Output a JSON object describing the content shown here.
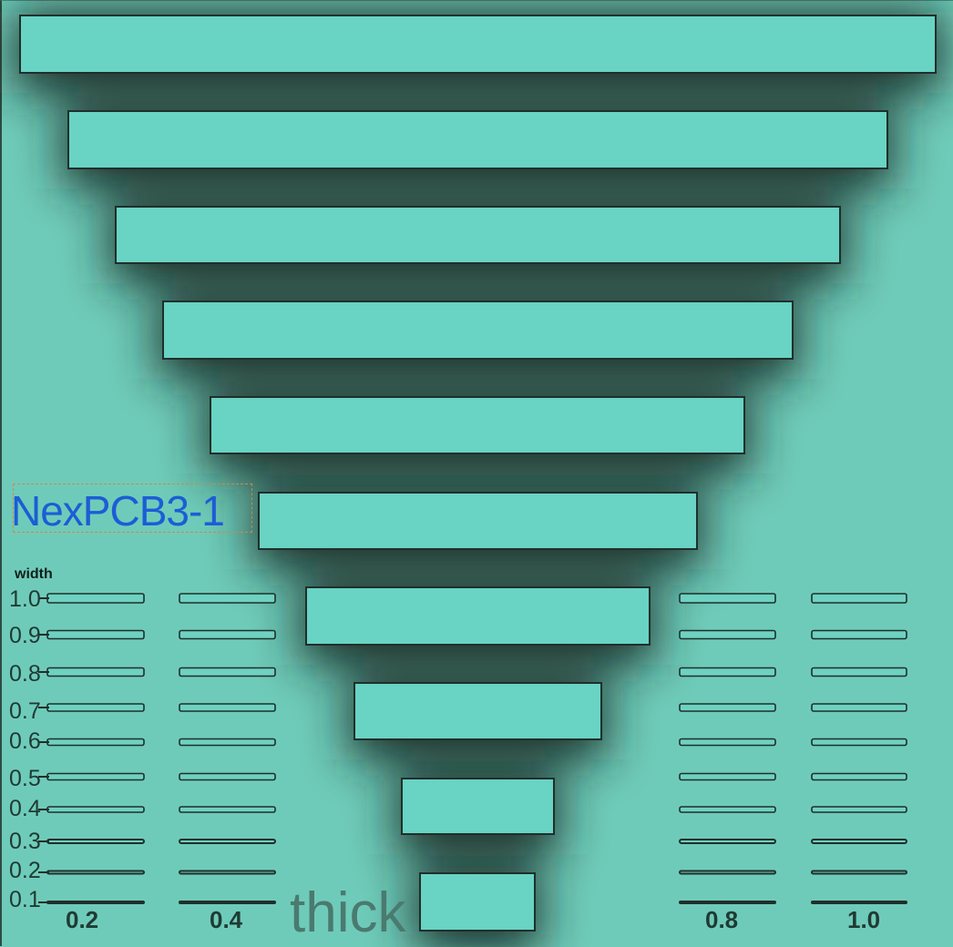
{
  "board": {
    "background": "#6fcbb9",
    "pad_color": "#69d3c4",
    "outline_color": "#1f2f2b",
    "label_color": "#1c5dd6"
  },
  "reference_designator": "NexPCB3-1",
  "width_axis_title": "width",
  "width_levels": [
    "1.0",
    "0.9",
    "0.8",
    "0.7",
    "0.6",
    "0.5",
    "0.4",
    "0.3",
    "0.2",
    "0.1"
  ],
  "thickness_columns": [
    "0.2",
    "0.4",
    "0.8",
    "1.0"
  ],
  "thick_label": "thick",
  "pad_count": 10
}
